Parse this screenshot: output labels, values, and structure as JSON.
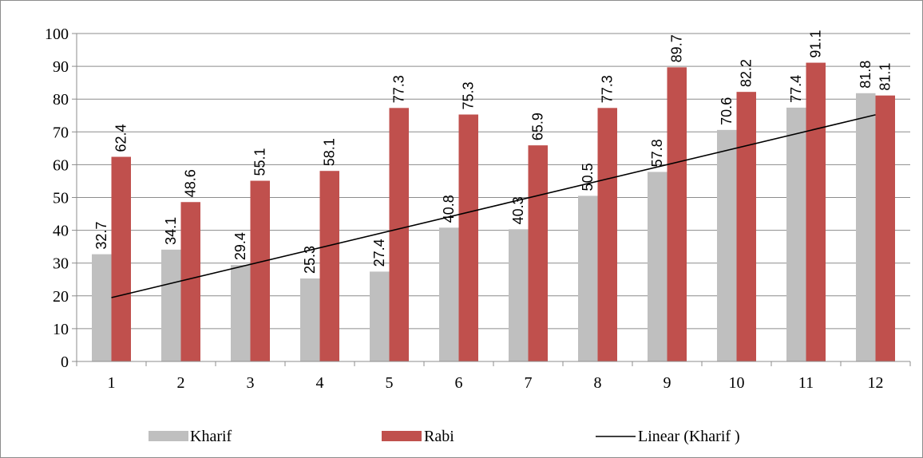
{
  "chart_data": {
    "type": "bar",
    "categories": [
      "1",
      "2",
      "3",
      "4",
      "5",
      "6",
      "7",
      "8",
      "9",
      "10",
      "11",
      "12"
    ],
    "series": [
      {
        "name": "Kharif",
        "values": [
          32.7,
          34.1,
          29.4,
          25.3,
          27.4,
          40.8,
          40.3,
          50.5,
          57.8,
          70.6,
          77.4,
          81.8
        ],
        "color": "#bfbfbf"
      },
      {
        "name": "Rabi",
        "values": [
          62.4,
          48.6,
          55.1,
          58.1,
          77.3,
          75.3,
          65.9,
          77.3,
          89.7,
          82.2,
          91.1,
          81.1
        ],
        "color": "#c0504d"
      }
    ],
    "trendline": {
      "name": "Linear (Kharif )",
      "of_series": "Kharif",
      "type": "linear",
      "color": "#000000"
    },
    "ylim": [
      0,
      100
    ],
    "ytick_step": 10,
    "yticks": [
      "0",
      "10",
      "20",
      "30",
      "40",
      "50",
      "60",
      "70",
      "80",
      "90",
      "100"
    ],
    "grid": true,
    "legend_position": "bottom",
    "title": "",
    "xlabel": "",
    "ylabel": ""
  }
}
